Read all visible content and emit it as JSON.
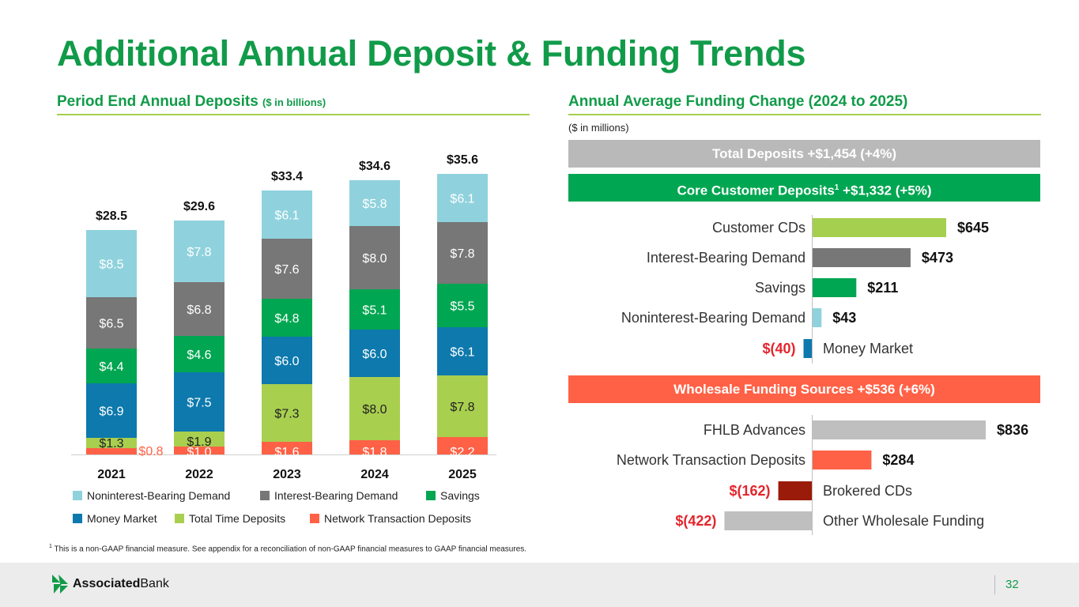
{
  "title": "Additional Annual Deposit & Funding Trends",
  "left_panel": {
    "title": "Period End Annual Deposits",
    "title_note": "($ in billions)"
  },
  "right_panel": {
    "title": "Annual Average Funding Change (2024 to 2025)",
    "units": "($ in millions)",
    "total_band": "Total Deposits +$1,454 (+4%)",
    "core_band_prefix": "Core Customer Deposits",
    "core_band_sup": "1",
    "core_band_suffix": " +$1,332 (+5%)",
    "wholesale_band": "Wholesale Funding Sources +$536 (+6%)"
  },
  "colors": {
    "green": "#119b49",
    "light_green": "#a5cf4f",
    "noninterest": "#8fd2dd",
    "interest": "#777777",
    "savings": "#00a651",
    "money_market": "#0d79ad",
    "time_deposits": "#a9cf4f",
    "network": "#ff6146",
    "brokered": "#9b1b0a",
    "gray_bar": "#bfbfbf",
    "band_gray": "#b9b9b9",
    "negative": "#e4252c"
  },
  "legend": [
    {
      "label": "Noninterest-Bearing Demand",
      "color": "#8fd2dd"
    },
    {
      "label": "Interest-Bearing Demand",
      "color": "#777777"
    },
    {
      "label": "Savings",
      "color": "#00a651"
    },
    {
      "label": "Money Market",
      "color": "#0d79ad"
    },
    {
      "label": "Total Time Deposits",
      "color": "#a9cf4f"
    },
    {
      "label": "Network Transaction Deposits",
      "color": "#ff6146"
    }
  ],
  "chart_data": [
    {
      "type": "bar",
      "stacked": true,
      "title": "Period End Annual Deposits ($ in billions)",
      "categories": [
        "2021",
        "2022",
        "2023",
        "2024",
        "2025"
      ],
      "totals": [
        "$28.5",
        "$29.6",
        "$33.4",
        "$34.6",
        "$35.6"
      ],
      "total_values": [
        28.5,
        29.6,
        33.4,
        34.6,
        35.6
      ],
      "series": [
        {
          "name": "Network Transaction Deposits",
          "color": "#ff6146",
          "values": [
            0.8,
            1.0,
            1.6,
            1.8,
            2.2
          ],
          "labels": [
            "$0.8",
            "$1.0",
            "$1.6",
            "$1.8",
            "$2.2"
          ]
        },
        {
          "name": "Total Time Deposits",
          "color": "#a9cf4f",
          "values": [
            1.3,
            1.9,
            7.3,
            8.0,
            7.8
          ],
          "labels": [
            "$1.3",
            "$1.9",
            "$7.3",
            "$8.0",
            "$7.8"
          ]
        },
        {
          "name": "Money Market",
          "color": "#0d79ad",
          "values": [
            6.9,
            7.5,
            6.0,
            6.0,
            6.1
          ],
          "labels": [
            "$6.9",
            "$7.5",
            "$6.0",
            "$6.0",
            "$6.1"
          ]
        },
        {
          "name": "Savings",
          "color": "#00a651",
          "values": [
            4.4,
            4.6,
            4.8,
            5.1,
            5.5
          ],
          "labels": [
            "$4.4",
            "$4.6",
            "$4.8",
            "$5.1",
            "$5.5"
          ]
        },
        {
          "name": "Interest-Bearing Demand",
          "color": "#777777",
          "values": [
            6.5,
            6.8,
            7.6,
            8.0,
            7.8
          ],
          "labels": [
            "$6.5",
            "$6.8",
            "$7.6",
            "$8.0",
            "$7.8"
          ]
        },
        {
          "name": "Noninterest-Bearing Demand",
          "color": "#8fd2dd",
          "values": [
            8.5,
            7.8,
            6.1,
            5.8,
            6.1
          ],
          "labels": [
            "$8.5",
            "$7.8",
            "$6.1",
            "$5.8",
            "$6.1"
          ]
        }
      ]
    },
    {
      "type": "bar",
      "orientation": "horizontal",
      "title": "Core Customer Deposits change ($ in millions)",
      "categories": [
        "Customer CDs",
        "Interest-Bearing Demand",
        "Savings",
        "Noninterest-Bearing Demand",
        "Money Market"
      ],
      "values": [
        645,
        473,
        211,
        43,
        -40
      ],
      "labels": [
        "$645",
        "$473",
        "$211",
        "$43",
        "$(40)"
      ],
      "colors": [
        "#a5cf4f",
        "#777777",
        "#00a651",
        "#8fd2dd",
        "#0d79ad"
      ]
    },
    {
      "type": "bar",
      "orientation": "horizontal",
      "title": "Wholesale Funding Sources change ($ in millions)",
      "categories": [
        "FHLB Advances",
        "Network Transaction Deposits",
        "Brokered CDs",
        "Other Wholesale Funding"
      ],
      "values": [
        836,
        284,
        -162,
        -422
      ],
      "labels": [
        "$836",
        "$284",
        "$(162)",
        "$(422)"
      ],
      "colors": [
        "#bfbfbf",
        "#ff6146",
        "#9b1b0a",
        "#bfbfbf"
      ]
    }
  ],
  "footnote": {
    "sup": "1",
    "text": " This is a non-GAAP financial measure. See appendix for a reconciliation of non-GAAP financial measures to GAAP financial measures."
  },
  "footer": {
    "logo_bold": "Associated",
    "logo_regular": "Bank",
    "page_number": "32"
  }
}
